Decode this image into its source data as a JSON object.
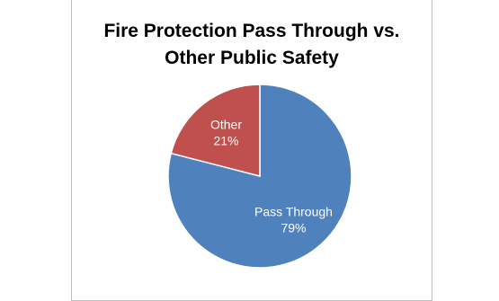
{
  "chart_data": {
    "type": "pie",
    "title_lines": [
      "Fire Protection Pass Through vs.",
      "Other Public Safety"
    ],
    "slices": [
      {
        "label": "Pass Through",
        "value": 79,
        "value_text": "79%",
        "color": "#4f81bd"
      },
      {
        "label": "Other",
        "value": 21,
        "value_text": "21%",
        "color": "#c0504d"
      }
    ],
    "legend": "none",
    "start_angle_deg": 0,
    "direction": "clockwise"
  }
}
